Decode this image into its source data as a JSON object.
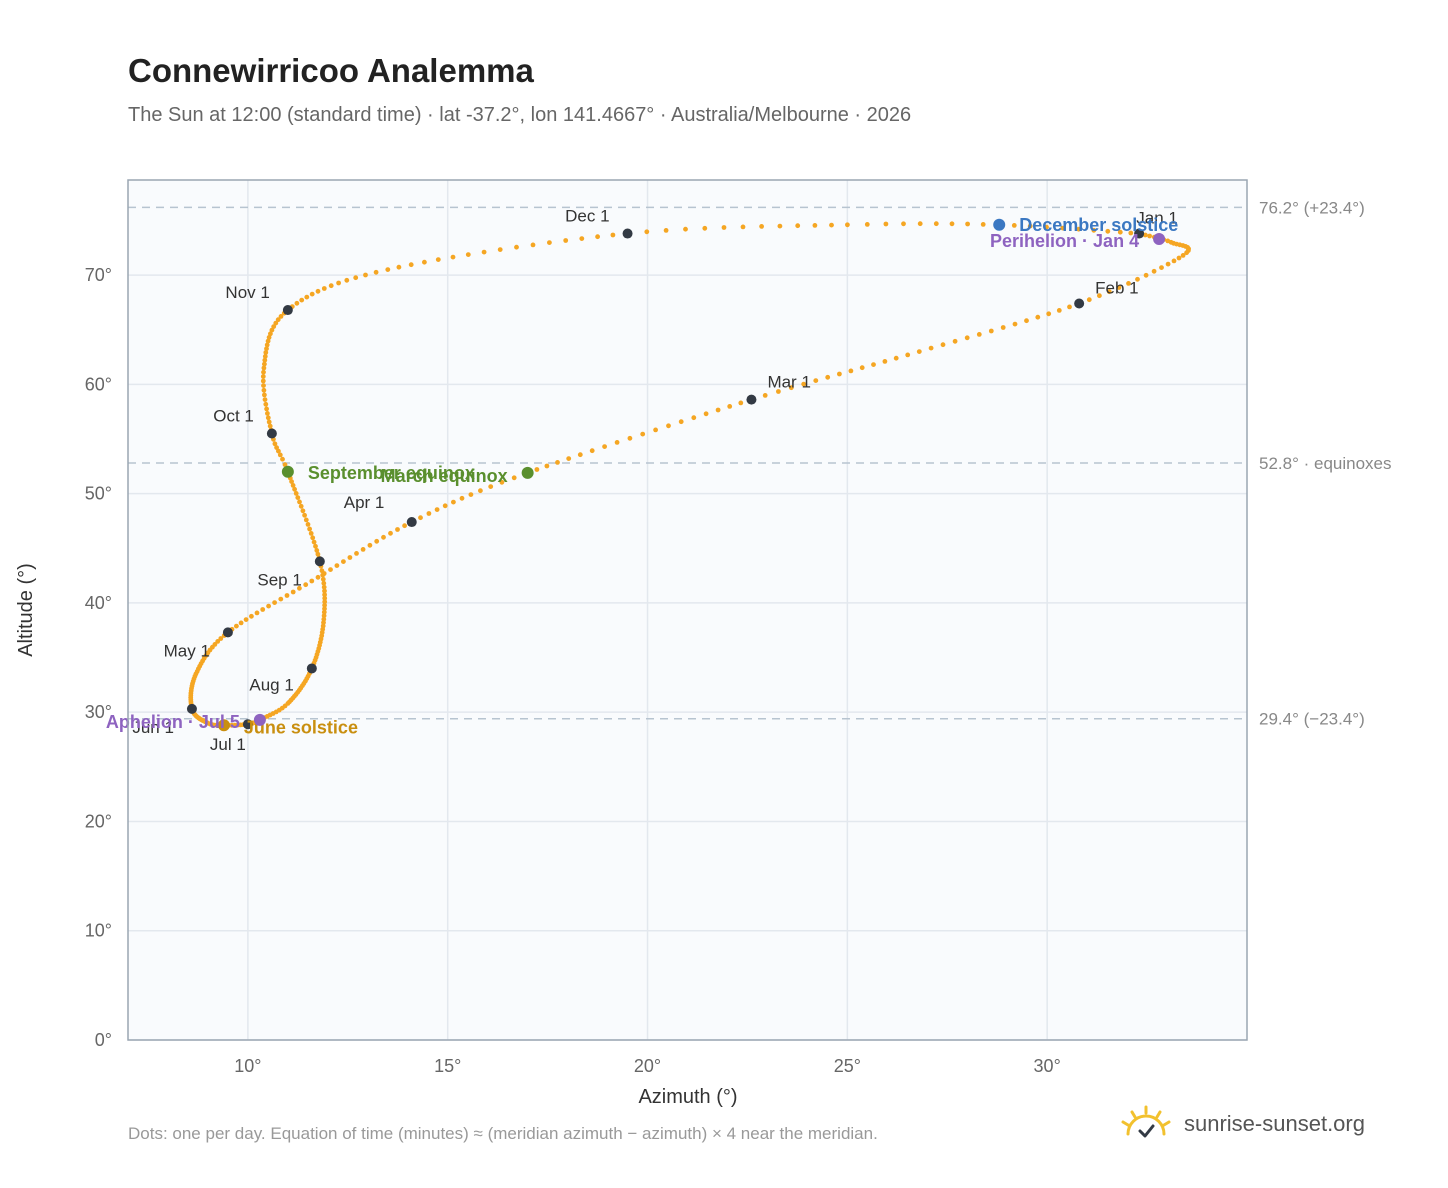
{
  "title": "Connewirricoo Analemma",
  "subtitle": "The Sun at 12:00 (standard time) · lat -37.2°, lon 141.4667° · Australia/Melbourne · 2026",
  "footnote": "Dots: one per day. Equation of time (minutes) ≈ (meridian azimuth − azimuth) × 4 near the meridian.",
  "brand": {
    "text": "sunrise-sunset.org",
    "icon": "sun-icon",
    "color": "#f2c12e"
  },
  "colors": {
    "curve": "#f5a623",
    "month": "#333a44",
    "solstice_dec": "#3b78c2",
    "solstice_jun": "#c98f10",
    "equinox": "#5a8f2e",
    "apsis": "#8e63c0",
    "refline": "#b7c4d0",
    "plot_bg": "#f9fbfd",
    "grid": "#e3e8ee",
    "frame": "#9aa6b2"
  },
  "chart_data": {
    "type": "scatter",
    "title": "Connewirricoo Analemma",
    "xlabel": "Azimuth (°)",
    "ylabel": "Altitude (°)",
    "xlim": [
      7,
      35
    ],
    "ylim": [
      0,
      78.7
    ],
    "x_ticks": [
      {
        "value": 10,
        "label": "10°"
      },
      {
        "value": 15,
        "label": "15°"
      },
      {
        "value": 20,
        "label": "20°"
      },
      {
        "value": 25,
        "label": "25°"
      },
      {
        "value": 30,
        "label": "30°"
      }
    ],
    "y_ticks": [
      {
        "value": 0,
        "label": "0°"
      },
      {
        "value": 10,
        "label": "10°"
      },
      {
        "value": 20,
        "label": "20°"
      },
      {
        "value": 30,
        "label": "30°"
      },
      {
        "value": 40,
        "label": "40°"
      },
      {
        "value": 50,
        "label": "50°"
      },
      {
        "value": 60,
        "label": "60°"
      },
      {
        "value": 70,
        "label": "70°"
      }
    ],
    "grid": true,
    "reference_lines": [
      {
        "y": 76.2,
        "label": "76.2° (+23.4°)"
      },
      {
        "y": 52.8,
        "label": "52.8° · equinoxes"
      },
      {
        "y": 29.4,
        "label": "29.4° (−23.4°)"
      }
    ],
    "month_markers": [
      {
        "label": "Jan 1",
        "x": 32.3,
        "y": 73.8
      },
      {
        "label": "Feb 1",
        "x": 30.8,
        "y": 67.4
      },
      {
        "label": "Mar 1",
        "x": 22.6,
        "y": 58.6
      },
      {
        "label": "Apr 1",
        "x": 14.1,
        "y": 47.4
      },
      {
        "label": "May 1",
        "x": 9.5,
        "y": 37.3
      },
      {
        "label": "Jun 1",
        "x": 8.6,
        "y": 30.3
      },
      {
        "label": "Jul 1",
        "x": 10.0,
        "y": 28.9
      },
      {
        "label": "Aug 1",
        "x": 11.6,
        "y": 34.0
      },
      {
        "label": "Sep 1",
        "x": 11.8,
        "y": 43.8
      },
      {
        "label": "Oct 1",
        "x": 10.6,
        "y": 55.5
      },
      {
        "label": "Nov 1",
        "x": 11.0,
        "y": 66.8
      },
      {
        "label": "Dec 1",
        "x": 19.5,
        "y": 73.8
      }
    ],
    "events": [
      {
        "label": "December solstice",
        "x": 28.8,
        "y": 74.6,
        "kind": "solstice_dec"
      },
      {
        "label": "Perihelion · Jan 4",
        "x": 32.8,
        "y": 73.3,
        "kind": "apsis"
      },
      {
        "label": "March equinox",
        "x": 17.0,
        "y": 51.9,
        "kind": "equinox"
      },
      {
        "label": "September equinox",
        "x": 11.0,
        "y": 52.0,
        "kind": "equinox"
      },
      {
        "label": "June solstice",
        "x": 9.4,
        "y": 28.8,
        "kind": "solstice_jun"
      },
      {
        "label": "Aphelion · Jul 5",
        "x": 10.3,
        "y": 29.3,
        "kind": "apsis"
      }
    ],
    "path_anchors": [
      {
        "doy": 0,
        "x": 32.3,
        "y": 73.8
      },
      {
        "doy": 8,
        "x": 33.1,
        "y": 73.0
      },
      {
        "doy": 18,
        "x": 33.4,
        "y": 71.8
      },
      {
        "doy": 31,
        "x": 30.8,
        "y": 67.4
      },
      {
        "doy": 45,
        "x": 26.8,
        "y": 63.0
      },
      {
        "doy": 59,
        "x": 22.6,
        "y": 58.6
      },
      {
        "doy": 78,
        "x": 17.0,
        "y": 51.9
      },
      {
        "doy": 90,
        "x": 14.1,
        "y": 47.4
      },
      {
        "doy": 105,
        "x": 11.6,
        "y": 42.0
      },
      {
        "doy": 120,
        "x": 9.5,
        "y": 37.3
      },
      {
        "doy": 135,
        "x": 8.7,
        "y": 33.5
      },
      {
        "doy": 151,
        "x": 8.6,
        "y": 30.3
      },
      {
        "doy": 165,
        "x": 9.0,
        "y": 29.0
      },
      {
        "doy": 172,
        "x": 9.4,
        "y": 28.8
      },
      {
        "doy": 181,
        "x": 10.0,
        "y": 28.9
      },
      {
        "doy": 186,
        "x": 10.3,
        "y": 29.3
      },
      {
        "doy": 196,
        "x": 11.0,
        "y": 30.8
      },
      {
        "doy": 212,
        "x": 11.6,
        "y": 34.0
      },
      {
        "doy": 228,
        "x": 11.9,
        "y": 38.5
      },
      {
        "doy": 243,
        "x": 11.8,
        "y": 43.8
      },
      {
        "doy": 265,
        "x": 11.0,
        "y": 52.0
      },
      {
        "doy": 273,
        "x": 10.6,
        "y": 55.5
      },
      {
        "doy": 288,
        "x": 10.4,
        "y": 61.5
      },
      {
        "doy": 304,
        "x": 11.0,
        "y": 66.8
      },
      {
        "doy": 318,
        "x": 13.5,
        "y": 70.5
      },
      {
        "doy": 334,
        "x": 19.5,
        "y": 73.8
      },
      {
        "doy": 346,
        "x": 25.0,
        "y": 74.6
      },
      {
        "doy": 355,
        "x": 28.8,
        "y": 74.6
      },
      {
        "doy": 365,
        "x": 32.3,
        "y": 73.8
      }
    ]
  }
}
